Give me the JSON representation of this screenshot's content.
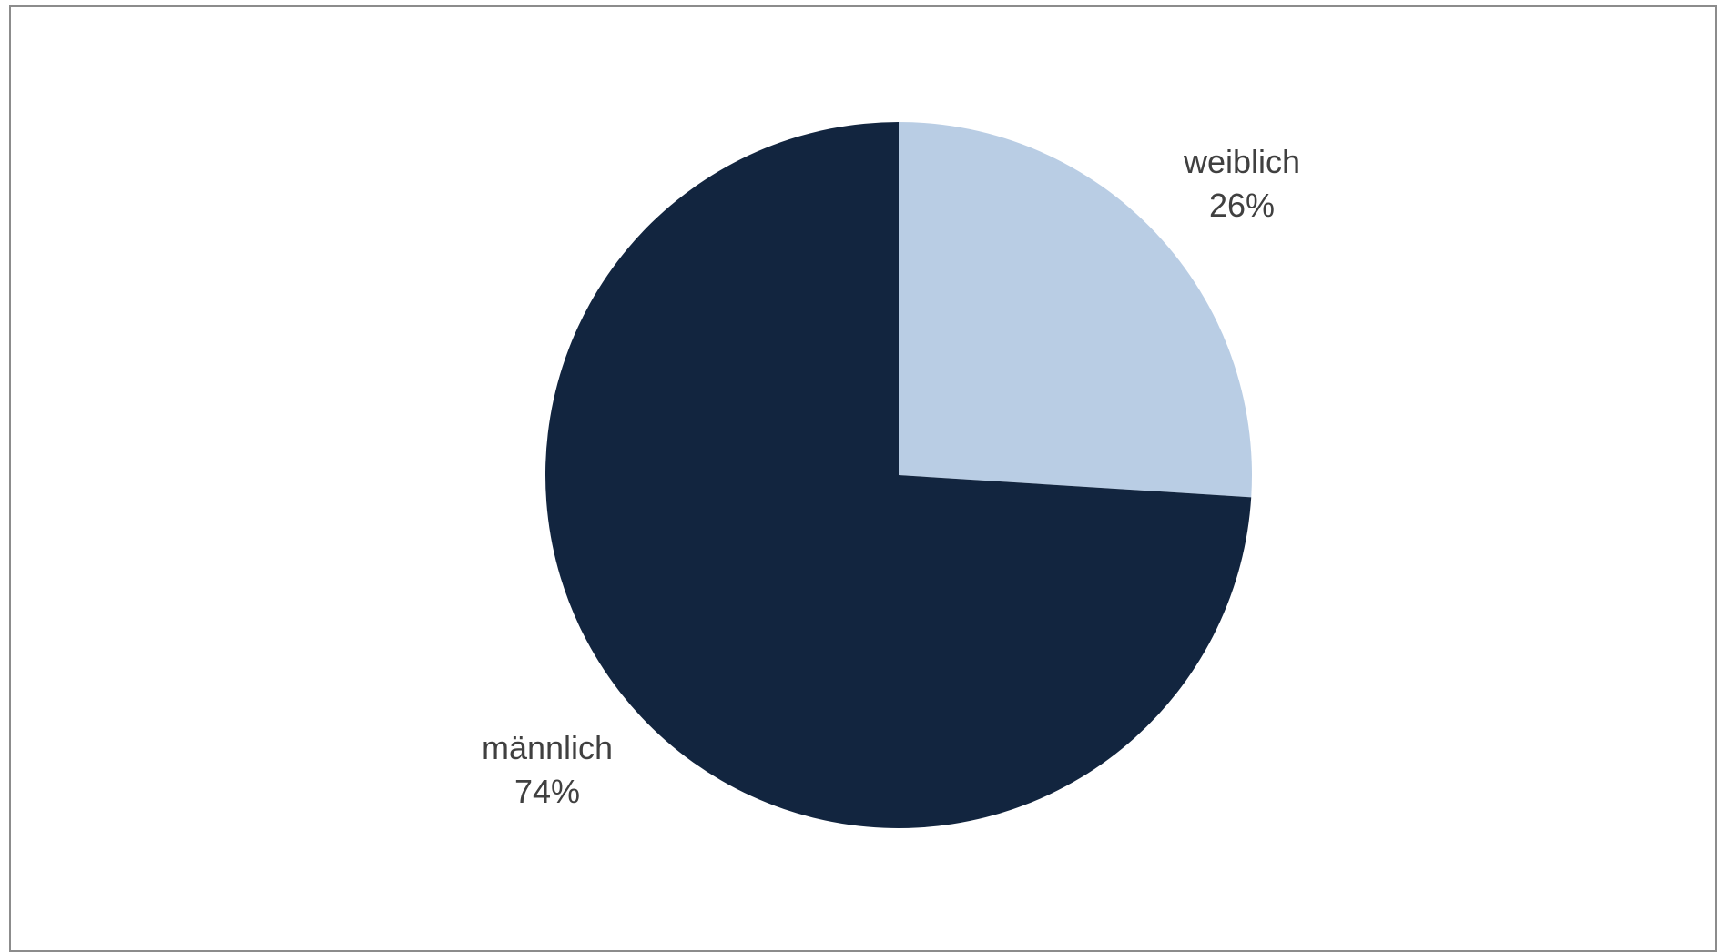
{
  "chart_data": {
    "type": "pie",
    "title": "",
    "slices": [
      {
        "label": "weiblich",
        "value": 26,
        "value_label": "26%",
        "color": "#b9cde4"
      },
      {
        "label": "männlich",
        "value": 74,
        "value_label": "74%",
        "color": "#12253f"
      }
    ],
    "start_angle": "12 o'clock",
    "direction": "clockwise",
    "legend": "none"
  }
}
